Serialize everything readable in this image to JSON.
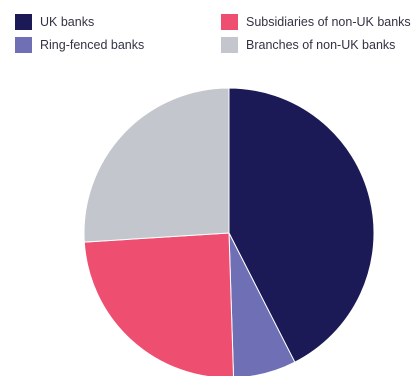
{
  "chart_data": {
    "type": "pie",
    "title": "",
    "slices": [
      {
        "label": "UK banks",
        "value": 42.5,
        "color": "#1c1957"
      },
      {
        "label": "Ring-fenced banks",
        "value": 7.0,
        "color": "#6f6fb6"
      },
      {
        "label": "Subsidiaries of non-UK banks",
        "value": 24.5,
        "color": "#ee4e70"
      },
      {
        "label": "Branches of non-UK banks",
        "value": 26.0,
        "color": "#c3c6cc"
      }
    ],
    "legend_position": "top",
    "start_angle_deg": 0,
    "direction": "clockwise"
  },
  "legend": {
    "items": [
      {
        "label": "UK banks",
        "color": "#1c1957"
      },
      {
        "label": "Ring-fenced banks",
        "color": "#6f6fb6"
      },
      {
        "label": "Subsidiaries of non-UK banks",
        "color": "#ee4e70"
      },
      {
        "label": "Branches of non-UK banks",
        "color": "#c3c6cc"
      }
    ]
  }
}
